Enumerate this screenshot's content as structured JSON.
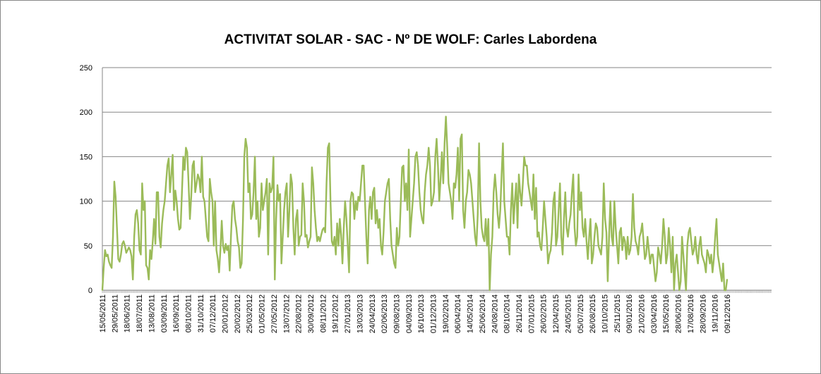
{
  "chart_data": {
    "type": "line",
    "title": "ACTIVITAT SOLAR - SAC - Nº DE WOLF: Carles Labordena",
    "xlabel": "",
    "ylabel": "",
    "ylim": [
      0,
      250
    ],
    "yticks": [
      "0",
      "50",
      "100",
      "150",
      "200",
      "250"
    ],
    "grid": true,
    "legend": "none",
    "x_tick_labels": [
      "15/05/2011",
      "29/05/2011",
      "18/06/2011",
      "18/07/2011",
      "13/08/2011",
      "03/09/2011",
      "16/09/2011",
      "08/10/2011",
      "31/10/2011",
      "07/12/2011",
      "20/01/2012",
      "20/02/2012",
      "25/03/2012",
      "01/05/2012",
      "27/05/2012",
      "13/07/2012",
      "22/08/2012",
      "30/09/2012",
      "08/11/2012",
      "19/12/2012",
      "27/01/2013",
      "13/03/2013",
      "24/04/2013",
      "02/06/2013",
      "09/08/2013",
      "04/09/2013",
      "16/10/2013",
      "01/12/2013",
      "19/02/2014",
      "06/04/2014",
      "14/05/2014",
      "25/06/2014",
      "24/08/2014",
      "08/10/2014",
      "26/11/2014",
      "07/01/2015",
      "26/02/2015",
      "12/04/2015",
      "24/05/2015",
      "05/07/2015",
      "26/08/2015",
      "10/10/2015",
      "25/11/2015",
      "09/01/2016",
      "21/02/2016",
      "03/04/2016",
      "15/05/2016",
      "28/06/2016",
      "17/08/2016",
      "28/09/2016",
      "19/11/2016",
      "09/12/2016"
    ],
    "series": [
      {
        "color": "#9BBB59",
        "values": [
          0,
          25,
          45,
          38,
          40,
          32,
          28,
          25,
          60,
          122,
          105,
          70,
          35,
          32,
          40,
          52,
          55,
          50,
          42,
          45,
          48,
          45,
          38,
          12,
          60,
          85,
          90,
          75,
          45,
          40,
          120,
          90,
          100,
          28,
          25,
          12,
          45,
          35,
          55,
          80,
          52,
          110,
          110,
          60,
          48,
          75,
          90,
          100,
          120,
          140,
          148,
          110,
          130,
          152,
          90,
          112,
          100,
          80,
          68,
          70,
          110,
          150,
          135,
          160,
          155,
          120,
          80,
          105,
          140,
          145,
          110,
          120,
          130,
          125,
          110,
          150,
          105,
          100,
          80,
          60,
          55,
          125,
          110,
          100,
          50,
          100,
          45,
          35,
          20,
          45,
          78,
          50,
          42,
          52,
          45,
          50,
          22,
          62,
          95,
          100,
          80,
          70,
          55,
          48,
          25,
          30,
          78,
          150,
          170,
          160,
          110,
          120,
          80,
          85,
          110,
          150,
          80,
          100,
          60,
          70,
          120,
          90,
          100,
          110,
          125,
          40,
          120,
          110,
          115,
          150,
          12,
          80,
          118,
          100,
          108,
          30,
          60,
          90,
          110,
          120,
          60,
          90,
          130,
          120,
          70,
          40,
          80,
          90,
          50,
          60,
          62,
          120,
          100,
          60,
          62,
          48,
          55,
          60,
          138,
          120,
          90,
          70,
          55,
          60,
          55,
          62,
          68,
          70,
          65,
          120,
          160,
          165,
          100,
          55,
          50,
          60,
          40,
          75,
          50,
          80,
          62,
          30,
          70,
          100,
          80,
          50,
          20,
          100,
          110,
          108,
          80,
          100,
          90,
          105,
          100,
          120,
          140,
          140,
          100,
          60,
          30,
          90,
          105,
          80,
          110,
          115,
          75,
          90,
          70,
          80,
          50,
          40,
          65,
          100,
          110,
          120,
          125,
          80,
          50,
          40,
          30,
          25,
          70,
          50,
          60,
          100,
          138,
          140,
          100,
          120,
          90,
          158,
          60,
          80,
          100,
          120,
          150,
          155,
          140,
          110,
          90,
          80,
          75,
          110,
          130,
          140,
          160,
          140,
          95,
          100,
          110,
          150,
          170,
          140,
          100,
          125,
          155,
          120,
          165,
          195,
          160,
          120,
          110,
          100,
          80,
          120,
          115,
          130,
          160,
          100,
          170,
          175,
          90,
          70,
          100,
          110,
          135,
          130,
          120,
          100,
          80,
          60,
          50,
          85,
          165,
          100,
          70,
          60,
          55,
          80,
          50,
          80,
          0,
          40,
          60,
          110,
          130,
          110,
          85,
          70,
          90,
          130,
          165,
          100,
          80,
          60,
          60,
          40,
          90,
          120,
          75,
          100,
          120,
          70,
          130,
          110,
          95,
          120,
          150,
          140,
          140,
          120,
          110,
          100,
          90,
          130,
          80,
          115,
          60,
          65,
          50,
          45,
          70,
          100,
          80,
          60,
          30,
          40,
          45,
          65,
          100,
          110,
          50,
          60,
          90,
          120,
          60,
          40,
          80,
          110,
          70,
          60,
          75,
          85,
          110,
          130,
          70,
          50,
          60,
          130,
          90,
          110,
          70,
          60,
          80,
          55,
          35,
          60,
          80,
          30,
          40,
          60,
          75,
          70,
          50,
          45,
          40,
          60,
          120,
          80,
          65,
          10,
          60,
          100,
          60,
          50,
          100,
          70,
          50,
          30,
          65,
          70,
          45,
          60,
          55,
          35,
          60,
          40,
          45,
          60,
          108,
          70,
          55,
          50,
          40,
          60,
          65,
          75,
          55,
          35,
          40,
          60,
          45,
          30,
          40,
          40,
          25,
          10,
          20,
          48,
          40,
          30,
          50,
          80,
          60,
          30,
          40,
          70,
          50,
          20,
          60,
          0,
          30,
          40,
          20,
          0,
          10,
          60,
          40,
          20,
          0,
          50,
          65,
          70,
          55,
          40,
          45,
          60,
          40,
          30,
          50,
          60,
          40,
          35,
          30,
          20,
          45,
          40,
          30,
          40,
          20,
          35,
          60,
          80,
          40,
          30,
          20,
          10,
          30,
          0,
          0,
          12
        ]
      }
    ]
  }
}
